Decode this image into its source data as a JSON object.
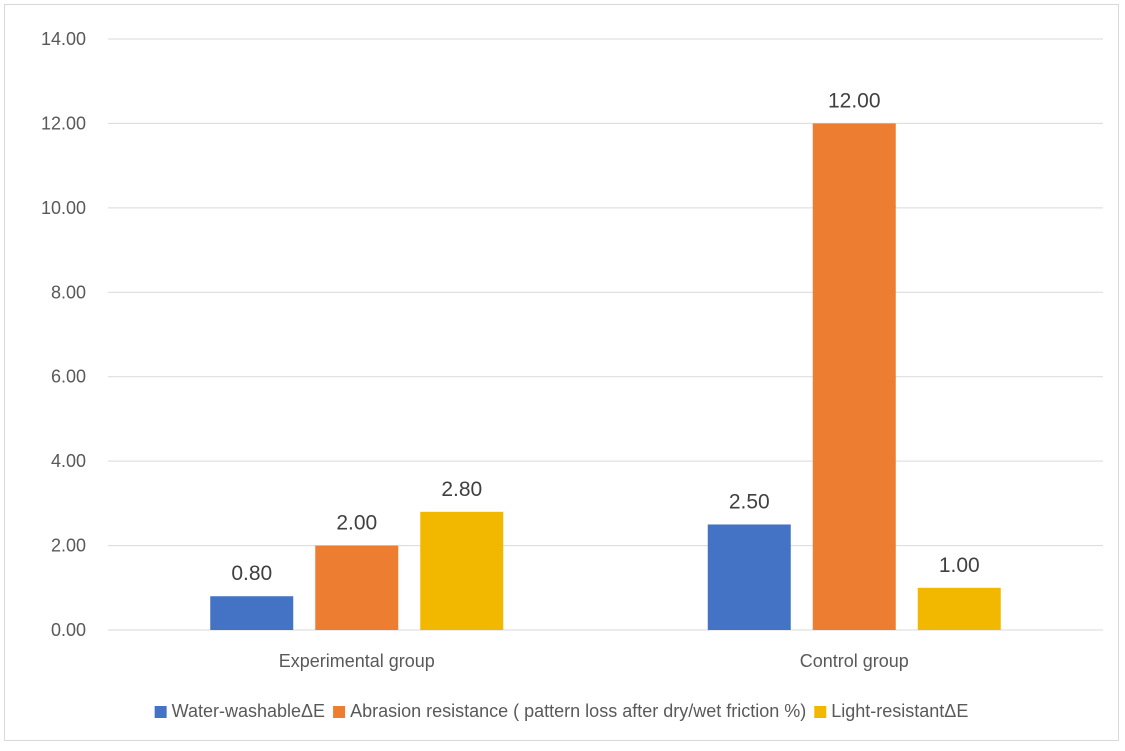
{
  "chart_data": {
    "type": "bar",
    "categories": [
      "Experimental group",
      "Control group"
    ],
    "series": [
      {
        "name": "Water-washableΔE",
        "color": "#4472C4",
        "values": [
          0.8,
          2.5
        ],
        "labels": [
          "0.80",
          "2.50"
        ]
      },
      {
        "name": "Abrasion resistance ( pattern loss after dry/wet friction %)",
        "color": "#ED7D31",
        "values": [
          2.0,
          12.0
        ],
        "labels": [
          "2.00",
          "12.00"
        ]
      },
      {
        "name": "Light-resistantΔE",
        "color": "#F2B800",
        "values": [
          2.8,
          1.0
        ],
        "labels": [
          "2.80",
          "1.00"
        ]
      }
    ],
    "ylim": [
      0,
      14
    ],
    "yticks": [
      0,
      2,
      4,
      6,
      8,
      10,
      12,
      14
    ],
    "ytick_labels": [
      "0.00",
      "2.00",
      "4.00",
      "6.00",
      "8.00",
      "10.00",
      "12.00",
      "14.00"
    ],
    "grid": true,
    "legend": "bottom"
  }
}
